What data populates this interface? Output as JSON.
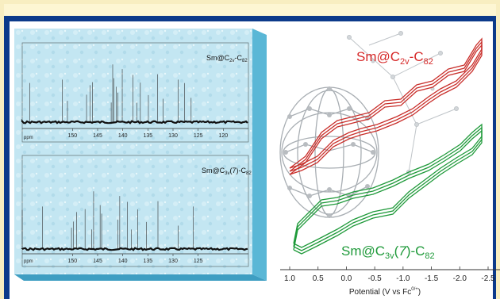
{
  "nmr_top": {
    "label_main": "Sm@C",
    "label_sub": "2v",
    "label_tail": "-C",
    "label_sub2": "82",
    "axis_ppm_label": "ppm",
    "ticks": [
      "150",
      "145",
      "140",
      "135",
      "130",
      "125",
      "120"
    ],
    "peaks": [
      158.5,
      152.0,
      151.0,
      147.2,
      146.5,
      146.0,
      142.3,
      142.0,
      141.8,
      141.3,
      141.0,
      140.1,
      138.0,
      137.2,
      136.5,
      134.9,
      133.1,
      132.0,
      129.0,
      127.7,
      126.4
    ]
  },
  "nmr_bottom": {
    "label_main": "Sm@C",
    "label_sub": "3v",
    "label_mid": "(7)-C",
    "label_sub2": "82",
    "axis_ppm_label": "ppm",
    "ticks": [
      "150",
      "145",
      "140",
      "135",
      "130",
      "125"
    ],
    "peaks": [
      160.0,
      156.0,
      150.2,
      149.8,
      149.2,
      147.5,
      146.2,
      145.8,
      144.5,
      144.2,
      141.0,
      140.6,
      139.1,
      138.3,
      137.0,
      135.3,
      133.0,
      129.0,
      126.0
    ]
  },
  "cv": {
    "label_top": {
      "text": "Sm@C",
      "sub": "2v",
      "tail": "-C",
      "sub2": "82",
      "color": "#d62828"
    },
    "label_bottom": {
      "text": "Sm@C",
      "sub": "3v",
      "mid": "(",
      "italic": "7",
      "tail": ")-C",
      "sub2": "82",
      "color": "#1f9a3a"
    },
    "xticks": [
      "1.0",
      "0.5",
      "0.0",
      "-0.5",
      "-1.0",
      "-1.5",
      "-2.0",
      "-2.5"
    ],
    "xlabel": "Potential (V vs Fc",
    "xlabel_sup": "0/+",
    "xlabel_close": ")"
  },
  "colors": {
    "frame": "#0c3a8a",
    "panel": "#bfe3f0",
    "red": "#c9302c",
    "green": "#1f9a3a"
  }
}
